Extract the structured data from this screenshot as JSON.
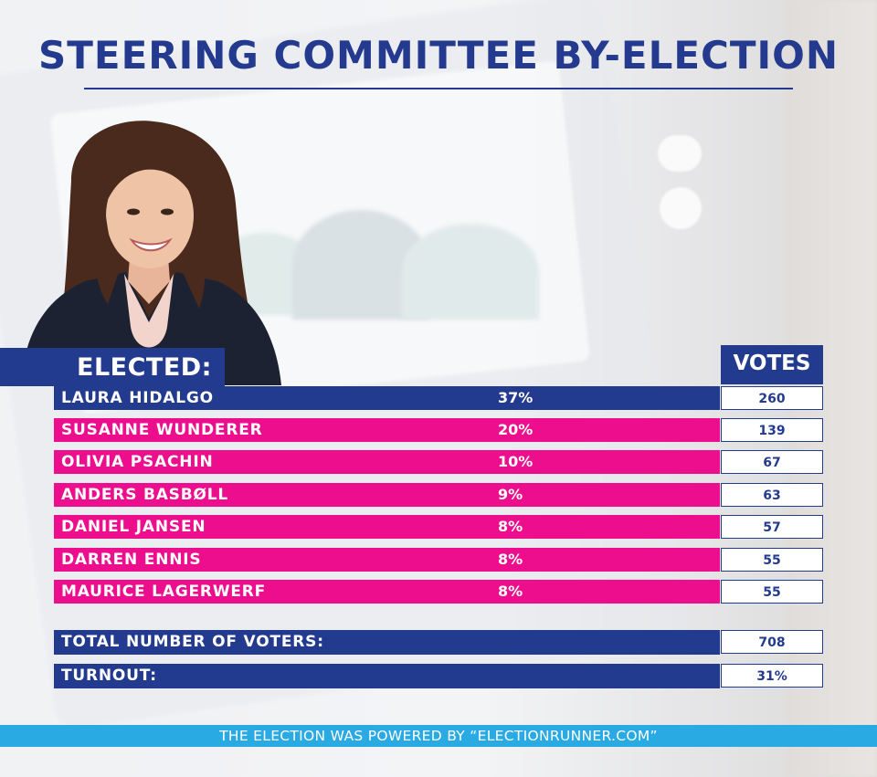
{
  "title": "STEERING COMMITTEE BY-ELECTION",
  "elected_label": "ELECTED:",
  "votes_label": "VOTES",
  "colors": {
    "navy": "#233b8f",
    "pink": "#ec0e8c",
    "cyan": "#29aae2"
  },
  "chart_data": {
    "type": "table",
    "title": "STEERING COMMITTEE BY-ELECTION",
    "columns": [
      "ELECTED:",
      "VOTES"
    ],
    "rows": [
      {
        "name": "LAURA HIDALGO",
        "percent": "37%",
        "votes": "260",
        "highlight": true
      },
      {
        "name": "SUSANNE WUNDERER",
        "percent": "20%",
        "votes": "139",
        "highlight": false
      },
      {
        "name": "OLIVIA PSACHIN",
        "percent": "10%",
        "votes": "67",
        "highlight": false
      },
      {
        "name": "ANDERS BASBØLL",
        "percent": "9%",
        "votes": "63",
        "highlight": false
      },
      {
        "name": "DANIEL JANSEN",
        "percent": "8%",
        "votes": "57",
        "highlight": false
      },
      {
        "name": "DARREN ENNIS",
        "percent": "8%",
        "votes": "55",
        "highlight": false
      },
      {
        "name": "MAURICE LAGERWERF",
        "percent": "8%",
        "votes": "55",
        "highlight": false
      }
    ],
    "summary": [
      {
        "label": "TOTAL NUMBER OF VOTERS:",
        "value": "708"
      },
      {
        "label": "TURNOUT:",
        "value": "31%"
      }
    ]
  },
  "footer": "THE ELECTION WAS POWERED BY “ELECTIONRUNNER.COM”"
}
